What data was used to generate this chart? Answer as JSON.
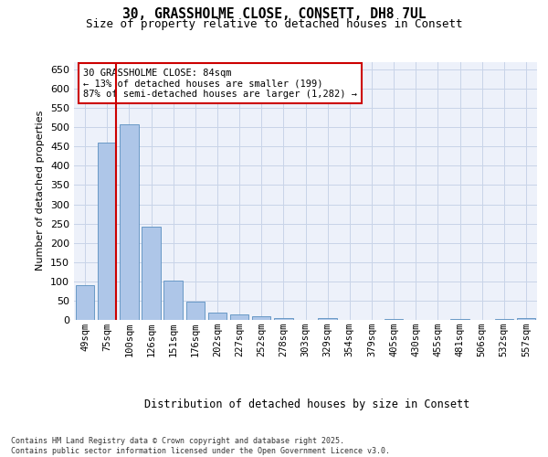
{
  "title_line1": "30, GRASSHOLME CLOSE, CONSETT, DH8 7UL",
  "title_line2": "Size of property relative to detached houses in Consett",
  "xlabel": "Distribution of detached houses by size in Consett",
  "ylabel": "Number of detached properties",
  "categories": [
    "49sqm",
    "75sqm",
    "100sqm",
    "126sqm",
    "151sqm",
    "176sqm",
    "202sqm",
    "227sqm",
    "252sqm",
    "278sqm",
    "303sqm",
    "329sqm",
    "354sqm",
    "379sqm",
    "405sqm",
    "430sqm",
    "455sqm",
    "481sqm",
    "506sqm",
    "532sqm",
    "557sqm"
  ],
  "values": [
    90,
    460,
    507,
    241,
    103,
    48,
    18,
    15,
    9,
    4,
    0,
    4,
    0,
    0,
    3,
    0,
    0,
    2,
    0,
    2,
    4
  ],
  "bar_color": "#aec6e8",
  "bar_edge_color": "#5a8fc0",
  "vline_color": "#cc0000",
  "annotation_text": "30 GRASSHOLME CLOSE: 84sqm\n← 13% of detached houses are smaller (199)\n87% of semi-detached houses are larger (1,282) →",
  "ylim": [
    0,
    670
  ],
  "yticks": [
    0,
    50,
    100,
    150,
    200,
    250,
    300,
    350,
    400,
    450,
    500,
    550,
    600,
    650
  ],
  "grid_color": "#c8d4e8",
  "background_color": "#edf1fa",
  "footer_text": "Contains HM Land Registry data © Crown copyright and database right 2025.\nContains public sector information licensed under the Open Government Licence v3.0."
}
